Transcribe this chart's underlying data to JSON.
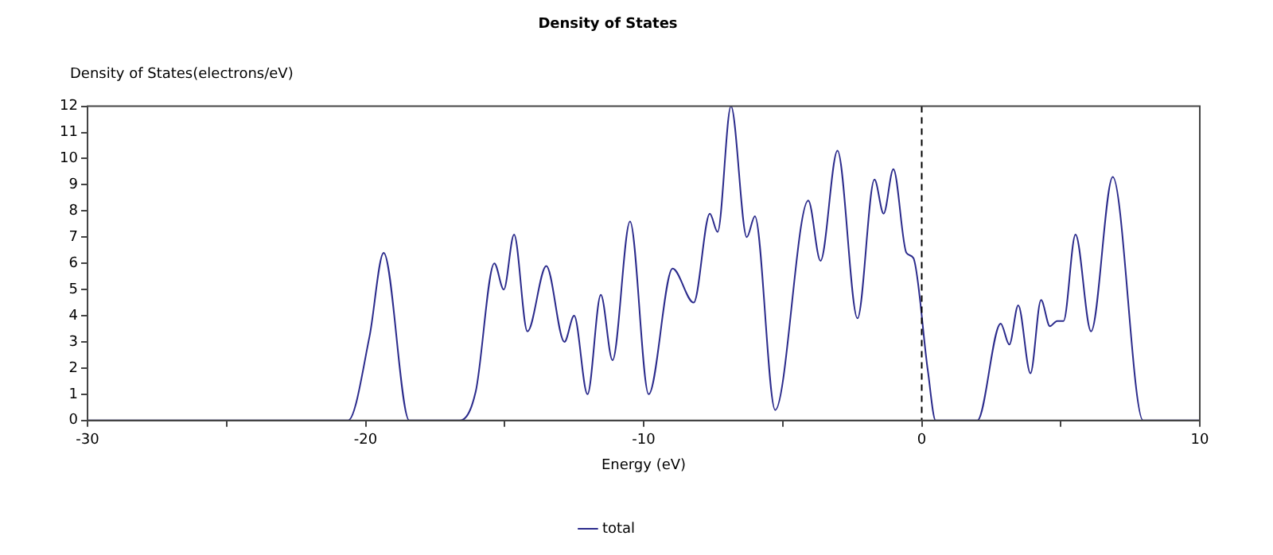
{
  "chart_data": {
    "type": "line",
    "title": "Density of States",
    "xlabel": "Energy (eV)",
    "ylabel": "Density of States(electrons/eV)",
    "series": [
      {
        "name": "total",
        "color": "#2b2b8c",
        "x": [
          -30,
          -21,
          -20.63,
          -19.86,
          -19.35,
          -18.43,
          -16.9,
          -16.61,
          -16.04,
          -15.37,
          -15.03,
          -14.66,
          -14.18,
          -13.5,
          -12.85,
          -12.5,
          -12.02,
          -11.54,
          -11.12,
          -10.49,
          -9.82,
          -8.96,
          -8.2,
          -7.62,
          -7.34,
          -6.86,
          -6.29,
          -6.0,
          -5.27,
          -4.08,
          -3.64,
          -3.03,
          -2.31,
          -1.7,
          -1.37,
          -1.02,
          -0.55,
          -0.3,
          0.22,
          0.5,
          1.8,
          2.0,
          2.84,
          3.15,
          3.47,
          3.91,
          4.29,
          4.61,
          4.87,
          5.1,
          5.53,
          6.09,
          6.87,
          7.96,
          10
        ],
        "values": [
          0,
          0,
          0,
          3.2,
          6.4,
          0,
          0,
          0,
          1.1,
          6.0,
          5.0,
          7.1,
          3.4,
          5.9,
          3.0,
          4.0,
          1.0,
          4.8,
          2.3,
          7.6,
          1.0,
          5.8,
          4.5,
          7.9,
          7.2,
          12.0,
          7.0,
          7.8,
          0.4,
          8.4,
          6.1,
          10.3,
          3.9,
          9.2,
          7.9,
          9.6,
          6.4,
          6.2,
          1.9,
          0,
          0,
          0,
          3.7,
          2.9,
          4.4,
          1.8,
          4.6,
          3.6,
          3.8,
          3.8,
          7.1,
          3.4,
          9.3,
          0,
          0
        ]
      }
    ],
    "xlim": [
      -30,
      10
    ],
    "xticks": [
      -30,
      {
        "value": -25,
        "label": null
      },
      -20,
      {
        "value": -15,
        "label": null
      },
      -10,
      {
        "value": -5,
        "label": null
      },
      0,
      {
        "value": 5,
        "label": null
      },
      10
    ],
    "ylim": [
      0,
      12
    ],
    "yticks": [
      0,
      1,
      2,
      3,
      4,
      5,
      6,
      7,
      8,
      9,
      10,
      11,
      12
    ],
    "ref_lines": [
      {
        "axis": "x",
        "value": 0,
        "line_style": "dashed",
        "color": "#000000"
      }
    ],
    "legend": "bottom",
    "grid": false,
    "marker": "none",
    "line_style": "solid"
  }
}
